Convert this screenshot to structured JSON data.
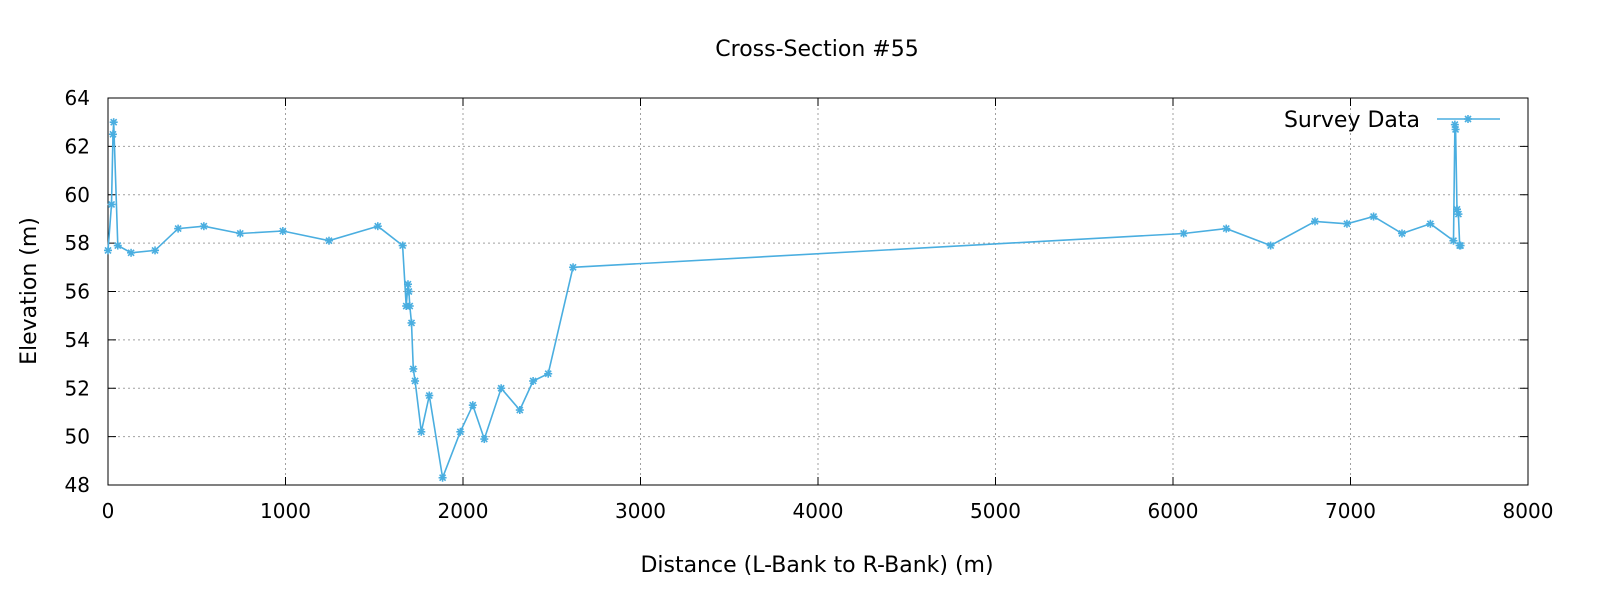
{
  "chart_data": {
    "type": "line",
    "title": "Cross-Section #55",
    "xlabel": "Distance (L-Bank to R-Bank) (m)",
    "ylabel": "Elevation (m)",
    "xlim": [
      0,
      8000
    ],
    "ylim": [
      48,
      64
    ],
    "xticks": [
      0,
      1000,
      2000,
      3000,
      4000,
      5000,
      6000,
      7000,
      8000
    ],
    "yticks": [
      48,
      50,
      52,
      54,
      56,
      58,
      60,
      62,
      64
    ],
    "grid": true,
    "legend_position": "top-right",
    "series": [
      {
        "name": "Survey Data",
        "color": "#4aaee0",
        "marker": "star",
        "x": [
          0,
          20,
          28,
          32,
          55,
          130,
          265,
          395,
          540,
          745,
          985,
          1245,
          1520,
          1660,
          1680,
          1690,
          1695,
          1700,
          1710,
          1720,
          1730,
          1765,
          1810,
          1885,
          1985,
          2055,
          2120,
          2215,
          2320,
          2395,
          2480,
          2620,
          6060,
          6300,
          6550,
          6800,
          6980,
          7130,
          7290,
          7450,
          7580,
          7588,
          7592,
          7600,
          7608,
          7615,
          7620
        ],
        "y": [
          57.7,
          59.6,
          62.5,
          63.0,
          57.9,
          57.6,
          57.7,
          58.6,
          58.7,
          58.4,
          58.5,
          58.1,
          58.7,
          57.9,
          55.4,
          56.3,
          56.0,
          55.4,
          54.7,
          52.8,
          52.3,
          50.2,
          51.7,
          48.3,
          50.2,
          51.3,
          49.9,
          52.0,
          51.1,
          52.3,
          52.6,
          57.0,
          58.4,
          58.6,
          57.9,
          58.9,
          58.8,
          59.1,
          58.4,
          58.8,
          58.1,
          62.9,
          62.7,
          59.4,
          59.2,
          57.9,
          57.9
        ]
      }
    ]
  }
}
